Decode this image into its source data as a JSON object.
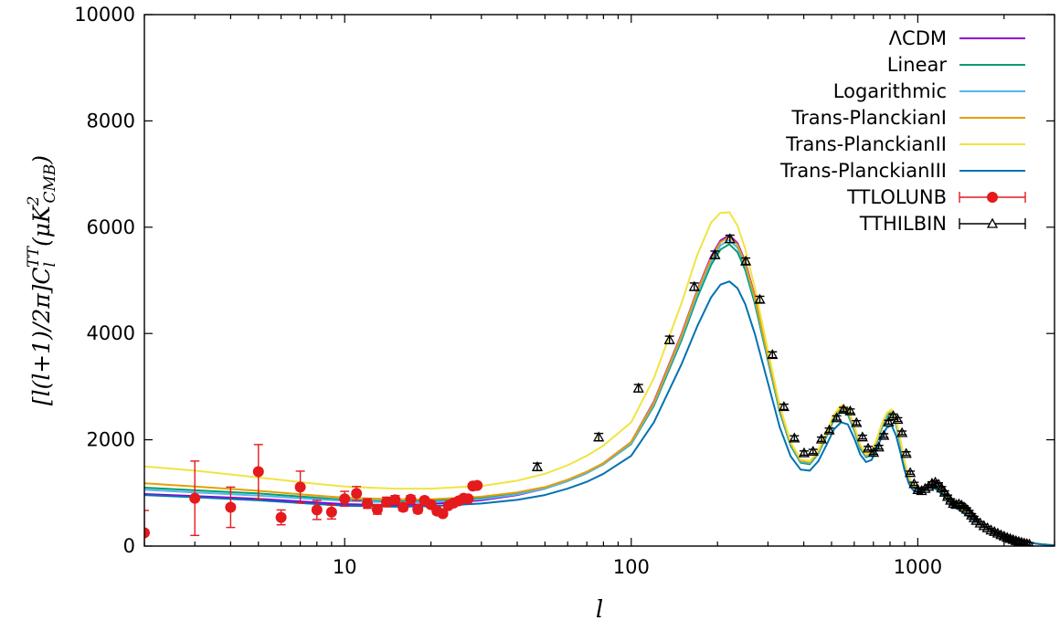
{
  "chart_data": {
    "type": "line",
    "xlabel": "l",
    "ylabel": {
      "main": "[l(l+1)/2π]C",
      "sub": "l",
      "sup": "TT",
      "unit": "(μK",
      "unit_sup": "2",
      "unit_sub": "CMB",
      "close": ")"
    },
    "xscale": "log",
    "xlim": [
      2,
      3000
    ],
    "ylim": [
      0,
      10000
    ],
    "x_ticks": [
      {
        "value": 10,
        "label": "10"
      },
      {
        "value": 100,
        "label": "100"
      },
      {
        "value": 1000,
        "label": "1000"
      }
    ],
    "y_ticks": [
      {
        "value": 0,
        "label": "0"
      },
      {
        "value": 2000,
        "label": "2000"
      },
      {
        "value": 4000,
        "label": "4000"
      },
      {
        "value": 6000,
        "label": "6000"
      },
      {
        "value": 8000,
        "label": "8000"
      },
      {
        "value": 10000,
        "label": "10000"
      }
    ],
    "grid": false,
    "legend_position": "top-right",
    "series": [
      {
        "name": "ΛCDM",
        "kind": "line",
        "color": "#9400d3",
        "x": [
          2,
          3,
          5,
          8,
          10,
          15,
          20,
          30,
          40,
          50,
          60,
          70,
          80,
          100,
          120,
          150,
          170,
          190,
          205,
          220,
          235,
          250,
          270,
          300,
          330,
          360,
          390,
          420,
          450,
          480,
          510,
          540,
          570,
          600,
          630,
          660,
          690,
          720,
          750,
          780,
          810,
          840,
          870,
          900,
          930,
          960,
          1000,
          1050,
          1100,
          1150,
          1200,
          1300,
          1400,
          1500,
          1700,
          1900,
          2100,
          2300,
          2500,
          2700,
          3000
        ],
        "y": [
          980,
          940,
          890,
          820,
          790,
          770,
          790,
          860,
          960,
          1080,
          1230,
          1390,
          1560,
          1960,
          2720,
          4000,
          4820,
          5450,
          5750,
          5850,
          5700,
          5350,
          4700,
          3600,
          2600,
          1950,
          1620,
          1590,
          1790,
          2120,
          2450,
          2620,
          2560,
          2250,
          1890,
          1720,
          1770,
          2010,
          2300,
          2500,
          2560,
          2350,
          1980,
          1580,
          1300,
          1150,
          1090,
          1120,
          1180,
          1160,
          1070,
          860,
          710,
          590,
          400,
          260,
          160,
          100,
          60,
          35,
          15
        ]
      },
      {
        "name": "Linear",
        "kind": "line",
        "color": "#009e73",
        "x": [
          2,
          3,
          5,
          8,
          10,
          15,
          20,
          30,
          40,
          50,
          60,
          70,
          80,
          100,
          120,
          150,
          170,
          190,
          205,
          220,
          235,
          250,
          270,
          300,
          330,
          360,
          390,
          420,
          450,
          480,
          510,
          540,
          570,
          600,
          630,
          660,
          690,
          720,
          750,
          780,
          810,
          840,
          870,
          900,
          930,
          960,
          1000,
          1050,
          1100,
          1150,
          1200,
          1300,
          1400,
          1500,
          1700,
          1900,
          2100,
          2300,
          2500,
          2700,
          3000
        ],
        "y": [
          1100,
          1050,
          990,
          910,
          870,
          840,
          850,
          900,
          990,
          1100,
          1230,
          1380,
          1540,
          1920,
          2640,
          3880,
          4680,
          5290,
          5580,
          5680,
          5530,
          5190,
          4560,
          3490,
          2520,
          1890,
          1570,
          1540,
          1740,
          2060,
          2380,
          2540,
          2480,
          2180,
          1830,
          1670,
          1720,
          1950,
          2230,
          2430,
          2490,
          2280,
          1920,
          1530,
          1260,
          1120,
          1060,
          1090,
          1150,
          1130,
          1040,
          840,
          690,
          570,
          390,
          250,
          155,
          97,
          58,
          34,
          15
        ]
      },
      {
        "name": "Logarithmic",
        "kind": "line",
        "color": "#56b4e9",
        "x": [
          2,
          3,
          5,
          8,
          10,
          15,
          20,
          30,
          40,
          50,
          60,
          70,
          80,
          100,
          120,
          150,
          170,
          190,
          205,
          220,
          235,
          250,
          270,
          300,
          330,
          360,
          390,
          420,
          450,
          480,
          510,
          540,
          570,
          600,
          630,
          660,
          690,
          720,
          750,
          780,
          810,
          840,
          870,
          900,
          930,
          960,
          1000,
          1050,
          1100,
          1150,
          1200,
          1300,
          1400,
          1500,
          1700,
          1900,
          2100,
          2300,
          2500,
          2700,
          3000
        ],
        "y": [
          1060,
          1010,
          950,
          880,
          850,
          820,
          830,
          880,
          970,
          1080,
          1220,
          1370,
          1540,
          1930,
          2670,
          3930,
          4740,
          5360,
          5660,
          5760,
          5610,
          5270,
          4630,
          3540,
          2560,
          1920,
          1590,
          1560,
          1760,
          2090,
          2410,
          2580,
          2520,
          2210,
          1860,
          1690,
          1740,
          1980,
          2260,
          2460,
          2520,
          2310,
          1950,
          1550,
          1280,
          1130,
          1070,
          1100,
          1160,
          1140,
          1050,
          850,
          700,
          580,
          395,
          255,
          157,
          98,
          59,
          34,
          15
        ]
      },
      {
        "name": "Trans-PlanckianI",
        "kind": "line",
        "color": "#e69f00",
        "x": [
          2,
          3,
          5,
          8,
          10,
          15,
          20,
          30,
          40,
          50,
          60,
          70,
          80,
          100,
          120,
          150,
          170,
          190,
          205,
          220,
          235,
          250,
          270,
          300,
          330,
          360,
          390,
          420,
          450,
          480,
          510,
          540,
          570,
          600,
          630,
          660,
          690,
          720,
          750,
          780,
          810,
          840,
          870,
          900,
          930,
          960,
          1000,
          1050,
          1100,
          1150,
          1200,
          1300,
          1400,
          1500,
          1700,
          1900,
          2100,
          2300,
          2500,
          2700,
          3000
        ],
        "y": [
          1180,
          1120,
          1040,
          950,
          910,
          880,
          880,
          930,
          1010,
          1110,
          1250,
          1400,
          1560,
          1960,
          2700,
          3980,
          4800,
          5420,
          5720,
          5820,
          5670,
          5320,
          4670,
          3580,
          2590,
          1940,
          1610,
          1580,
          1780,
          2110,
          2440,
          2610,
          2550,
          2240,
          1880,
          1710,
          1760,
          2000,
          2290,
          2490,
          2550,
          2340,
          1970,
          1570,
          1290,
          1140,
          1080,
          1110,
          1170,
          1150,
          1060,
          855,
          705,
          585,
          398,
          258,
          158,
          99,
          59,
          35,
          15
        ]
      },
      {
        "name": "Trans-PlanckianII",
        "kind": "line",
        "color": "#f0e442",
        "x": [
          2,
          3,
          5,
          8,
          10,
          15,
          20,
          30,
          40,
          50,
          60,
          70,
          80,
          100,
          120,
          150,
          170,
          190,
          205,
          220,
          235,
          250,
          270,
          300,
          330,
          360,
          390,
          420,
          450,
          480,
          510,
          540,
          570,
          600,
          630,
          660,
          690,
          720,
          750,
          780,
          810,
          840,
          870,
          900,
          930,
          960,
          1000,
          1050,
          1100,
          1150,
          1200,
          1300,
          1400,
          1500,
          1700,
          1900,
          2100,
          2300,
          2500,
          2700,
          3000
        ],
        "y": [
          1500,
          1420,
          1290,
          1170,
          1120,
          1080,
          1080,
          1130,
          1230,
          1360,
          1520,
          1700,
          1890,
          2330,
          3160,
          4580,
          5480,
          6090,
          6270,
          6280,
          6030,
          5590,
          4850,
          3680,
          2640,
          1960,
          1630,
          1600,
          1810,
          2150,
          2480,
          2650,
          2590,
          2270,
          1910,
          1730,
          1780,
          2020,
          2310,
          2510,
          2570,
          2360,
          1990,
          1590,
          1300,
          1150,
          1090,
          1120,
          1180,
          1160,
          1070,
          860,
          710,
          590,
          400,
          260,
          160,
          100,
          60,
          35,
          15
        ]
      },
      {
        "name": "Trans-PlanckianIII",
        "kind": "line",
        "color": "#0072b2",
        "x": [
          2,
          3,
          5,
          8,
          10,
          15,
          20,
          30,
          40,
          50,
          60,
          70,
          80,
          100,
          120,
          150,
          170,
          190,
          205,
          220,
          235,
          250,
          270,
          300,
          330,
          360,
          390,
          420,
          450,
          480,
          510,
          540,
          570,
          600,
          630,
          660,
          690,
          720,
          750,
          780,
          810,
          840,
          870,
          900,
          930,
          960,
          1000,
          1050,
          1100,
          1150,
          1200,
          1300,
          1400,
          1500,
          1700,
          1900,
          2100,
          2300,
          2500,
          2700,
          3000
        ],
        "y": [
          960,
          920,
          860,
          790,
          760,
          740,
          750,
          800,
          870,
          960,
          1080,
          1210,
          1360,
          1700,
          2330,
          3430,
          4140,
          4680,
          4920,
          4980,
          4850,
          4550,
          3990,
          3070,
          2230,
          1690,
          1440,
          1420,
          1600,
          1900,
          2200,
          2330,
          2290,
          2030,
          1720,
          1580,
          1620,
          1830,
          2070,
          2230,
          2270,
          2080,
          1760,
          1420,
          1180,
          1060,
          1010,
          1040,
          1100,
          1080,
          1000,
          810,
          670,
          560,
          380,
          245,
          150,
          95,
          57,
          33,
          14
        ]
      },
      {
        "name": "TTLOLUNB",
        "kind": "points-errorbars",
        "color": "#e41a1c",
        "x": [
          2,
          3,
          4,
          5,
          6,
          7,
          8,
          9,
          10,
          11,
          12,
          13,
          14,
          15,
          16,
          17,
          18,
          19,
          20,
          21,
          22,
          23,
          24,
          25,
          26,
          27,
          28,
          29
        ],
        "y": [
          250,
          900,
          730,
          1400,
          540,
          1110,
          680,
          640,
          890,
          990,
          800,
          690,
          830,
          870,
          730,
          880,
          690,
          860,
          780,
          660,
          610,
          760,
          810,
          850,
          900,
          890,
          1130,
          1140
        ],
        "err": [
          420,
          700,
          380,
          510,
          140,
          300,
          180,
          130,
          140,
          130,
          90,
          90,
          90,
          80,
          70,
          70,
          70,
          60,
          60,
          60,
          50,
          50,
          50,
          50,
          50,
          45,
          45,
          40
        ]
      },
      {
        "name": "TTHILBIN",
        "kind": "points-errorbars",
        "color": "#000000",
        "x": [
          47,
          77,
          106,
          136,
          166,
          196,
          221,
          251,
          281,
          311,
          341,
          371,
          401,
          431,
          461,
          491,
          521,
          551,
          581,
          611,
          641,
          671,
          701,
          731,
          761,
          791,
          821,
          851,
          881,
          911,
          941,
          971,
          1001,
          1031,
          1061,
          1091,
          1121,
          1151,
          1181,
          1211,
          1241,
          1271,
          1301,
          1331,
          1361,
          1391,
          1421,
          1451,
          1481,
          1511,
          1541,
          1571,
          1601,
          1651,
          1701,
          1751,
          1801,
          1851,
          1901,
          1951,
          2001,
          2051,
          2101,
          2151,
          2201,
          2251,
          2301,
          2351,
          2401,
          2451
        ],
        "y": [
          1490,
          2050,
          2970,
          3880,
          4880,
          5480,
          5780,
          5360,
          4640,
          3600,
          2620,
          2030,
          1750,
          1780,
          2010,
          2180,
          2410,
          2570,
          2540,
          2320,
          2050,
          1840,
          1760,
          1860,
          2080,
          2330,
          2450,
          2380,
          2130,
          1740,
          1380,
          1170,
          1060,
          1040,
          1080,
          1120,
          1180,
          1200,
          1160,
          1090,
          1010,
          930,
          860,
          800,
          780,
          790,
          770,
          730,
          690,
          640,
          580,
          530,
          480,
          430,
          380,
          340,
          300,
          270,
          240,
          210,
          185,
          160,
          140,
          120,
          100,
          85,
          70,
          55,
          45,
          35
        ],
        "err": [
          70,
          70,
          70,
          70,
          70,
          70,
          70,
          60,
          60,
          55,
          50,
          45,
          40,
          40,
          40,
          40,
          40,
          40,
          40,
          40,
          35,
          35,
          35,
          35,
          35,
          35,
          35,
          35,
          35,
          35,
          30,
          30,
          30,
          30,
          30,
          30,
          30,
          30,
          30,
          30,
          30,
          30,
          30,
          30,
          30,
          30,
          30,
          30,
          30,
          30,
          30,
          30,
          30,
          30,
          30,
          30,
          30,
          30,
          30,
          30,
          30,
          30,
          30,
          30,
          30,
          30,
          30,
          30,
          30,
          30
        ]
      }
    ]
  }
}
